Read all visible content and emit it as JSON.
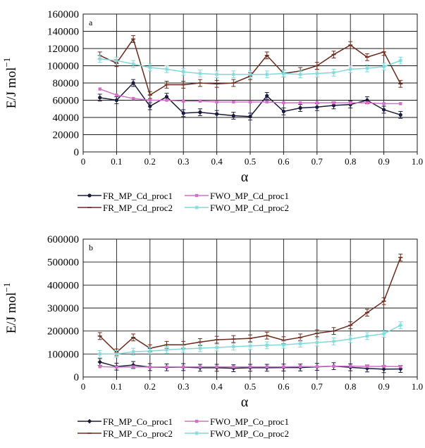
{
  "chart_data": [
    {
      "type": "line",
      "panel_label": "a",
      "xlabel": "α",
      "ylabel": "E/J mol",
      "ylabel_exponent": "−1",
      "xlim": [
        0,
        1.0
      ],
      "ylim": [
        0,
        160000
      ],
      "x_ticks": [
        "0",
        "0.1",
        "0.2",
        "0.3",
        "0.4",
        "0.5",
        "0.6",
        "0.7",
        "0.8",
        "0.9",
        "1.0"
      ],
      "y_ticks": [
        "0",
        "20000",
        "40000",
        "60000",
        "80000",
        "100000",
        "120000",
        "140000",
        "160000"
      ],
      "grid": true,
      "legend_position": "bottom",
      "x": [
        0.05,
        0.1,
        0.15,
        0.2,
        0.25,
        0.3,
        0.35,
        0.4,
        0.45,
        0.5,
        0.55,
        0.6,
        0.65,
        0.7,
        0.75,
        0.8,
        0.85,
        0.9,
        0.95
      ],
      "series": [
        {
          "name": "FR_MP_Cd_proc1",
          "color": "#1a1a3a",
          "marker": "circle",
          "values": [
            63000,
            60000,
            80000,
            53000,
            64000,
            45000,
            46000,
            44000,
            42000,
            41000,
            65000,
            47000,
            51000,
            52000,
            54000,
            55000,
            60000,
            49000,
            43000
          ]
        },
        {
          "name": "FR_MP_Cd_proc2",
          "color": "#6b2a1e",
          "marker": "dash",
          "values": [
            112000,
            103000,
            131000,
            66000,
            78000,
            78000,
            80000,
            79000,
            80000,
            88000,
            112000,
            91000,
            94000,
            100000,
            113000,
            124000,
            110000,
            116000,
            79000
          ]
        },
        {
          "name": "FWO_MP_Cd_proc1",
          "color": "#d070c8",
          "marker": "square",
          "values": [
            73000,
            66000,
            62000,
            60000,
            60000,
            59000,
            59000,
            58000,
            58000,
            58000,
            58000,
            57000,
            57000,
            57000,
            57000,
            57000,
            57000,
            56000,
            56000
          ]
        },
        {
          "name": "FWO_MP_Cd_proc2",
          "color": "#80d8d8",
          "marker": "asterisk",
          "values": [
            108000,
            106000,
            102000,
            98000,
            96000,
            93000,
            91000,
            90000,
            90000,
            90000,
            90000,
            91000,
            90000,
            91000,
            92000,
            96000,
            97000,
            99000,
            106000
          ]
        }
      ]
    },
    {
      "type": "line",
      "panel_label": "b",
      "xlabel": "α",
      "ylabel": "E/J mol",
      "ylabel_exponent": "−1",
      "xlim": [
        0,
        1.0
      ],
      "ylim": [
        0,
        600000
      ],
      "x_ticks": [
        "0",
        "0.1",
        "0.2",
        "0.3",
        "0.4",
        "0.5",
        "0.6",
        "0.7",
        "0.8",
        "0.9",
        "1.0"
      ],
      "y_ticks": [
        "0",
        "100000",
        "200000",
        "300000",
        "400000",
        "500000",
        "600000"
      ],
      "grid": true,
      "legend_position": "bottom",
      "x": [
        0.05,
        0.1,
        0.15,
        0.2,
        0.25,
        0.3,
        0.35,
        0.4,
        0.45,
        0.5,
        0.55,
        0.6,
        0.65,
        0.7,
        0.75,
        0.8,
        0.85,
        0.9,
        0.95
      ],
      "series": [
        {
          "name": "FR_MP_Co_proc1",
          "color": "#1a1a3a",
          "marker": "diamond",
          "values": [
            65000,
            45000,
            52000,
            43000,
            42000,
            43000,
            40000,
            40000,
            38000,
            40000,
            40000,
            41000,
            41000,
            44000,
            47000,
            42000,
            37000,
            34000,
            35000
          ]
        },
        {
          "name": "FR_MP_Co_proc2",
          "color": "#6b2a1e",
          "marker": "dash",
          "values": [
            178000,
            107000,
            172000,
            125000,
            140000,
            140000,
            152000,
            162000,
            165000,
            168000,
            180000,
            160000,
            172000,
            190000,
            200000,
            225000,
            280000,
            330000,
            520000
          ]
        },
        {
          "name": "FWO_MP_Co_proc1",
          "color": "#d070c8",
          "marker": "square",
          "values": [
            45000,
            43000,
            44000,
            43000,
            44000,
            44000,
            44000,
            44000,
            44000,
            44000,
            44000,
            44000,
            45000,
            45000,
            47000,
            47000,
            46000,
            46000,
            45000
          ]
        },
        {
          "name": "FWO_MP_Co_proc2",
          "color": "#80d8d8",
          "marker": "asterisk",
          "values": [
            100000,
            100000,
            110000,
            113000,
            118000,
            122000,
            125000,
            128000,
            132000,
            135000,
            138000,
            140000,
            145000,
            150000,
            155000,
            165000,
            178000,
            188000,
            225000
          ]
        }
      ]
    }
  ]
}
